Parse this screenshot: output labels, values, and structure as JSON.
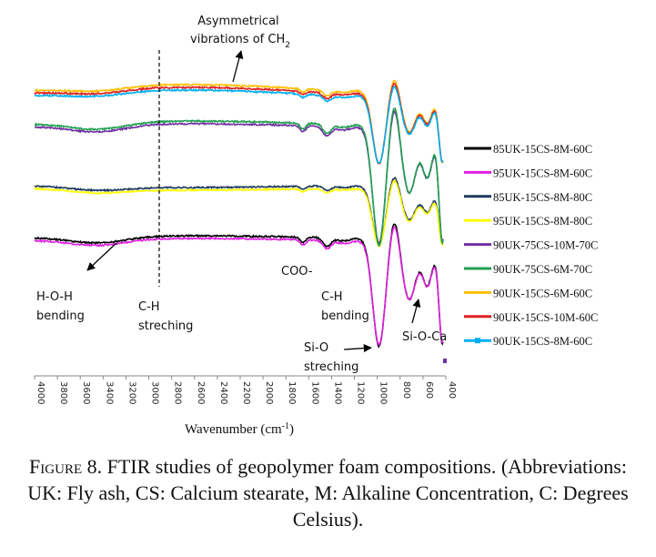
{
  "chart_data": {
    "type": "line",
    "xlabel": "Wavenumber (cm",
    "xlabel_sup": "-1",
    "xlabel_close": ")",
    "x_reversed": true,
    "xlim": [
      4000,
      400
    ],
    "xticks": [
      "4000",
      "3800",
      "3600",
      "3400",
      "3200",
      "3000",
      "2800",
      "2600",
      "2400",
      "2200",
      "2000",
      "1800",
      "1600",
      "1400",
      "1200",
      "1000",
      "800",
      "600",
      "400"
    ],
    "grid": false,
    "legend_position": "right",
    "series": [
      {
        "name": "85UK-15CS-8M-60C",
        "color": "#000000",
        "marker": "none",
        "group": 4,
        "offset": 0
      },
      {
        "name": "95UK-15CS-8M-60C",
        "color": "#e020e0",
        "marker": "none",
        "group": 4,
        "offset": 1
      },
      {
        "name": "85UK-15CS-8M-80C",
        "color": "#1f3a60",
        "marker": "none",
        "group": 3,
        "offset": 0
      },
      {
        "name": "95UK-15CS-8M-80C",
        "color": "#ffff00",
        "marker": "none",
        "group": 3,
        "offset": 1
      },
      {
        "name": "90UK-75CS-10M-70C",
        "color": "#7030a0",
        "marker": "none",
        "group": 2,
        "offset": 1
      },
      {
        "name": "90UK-75CS-6M-70C",
        "color": "#20a050",
        "marker": "none",
        "group": 2,
        "offset": 0
      },
      {
        "name": "90UK-15CS-6M-60C",
        "color": "#ffc000",
        "marker": "none",
        "group": 1,
        "offset": 0
      },
      {
        "name": "90UK-15CS-10M-60C",
        "color": "#e02020",
        "marker": "none",
        "group": 1,
        "offset": 1
      },
      {
        "name": "90UK-15CS-8M-60C",
        "color": "#00b0f0",
        "marker": "square",
        "group": 1,
        "offset": 2
      }
    ],
    "annotations": [
      {
        "text": [
          "Asymmetrical",
          "vibrations of CH"
        ],
        "sub": "2"
      },
      {
        "text": [
          "H-O-H",
          "bending"
        ]
      },
      {
        "text": [
          "C-H",
          "streching"
        ]
      },
      {
        "text": [
          "COO-"
        ]
      },
      {
        "text": [
          "C-H",
          "bending"
        ]
      },
      {
        "text": [
          "Si-O",
          "streching"
        ]
      },
      {
        "text": [
          "Si-O-Ca"
        ]
      }
    ]
  },
  "caption": {
    "figure_word": "Figure",
    "text": " 8. FTIR studies of geopolymer foam compositions. (Abbreviations: UK: Fly ash, CS: Calcium stearate, M: Alkaline Concentration, C: Degrees Celsius)."
  }
}
